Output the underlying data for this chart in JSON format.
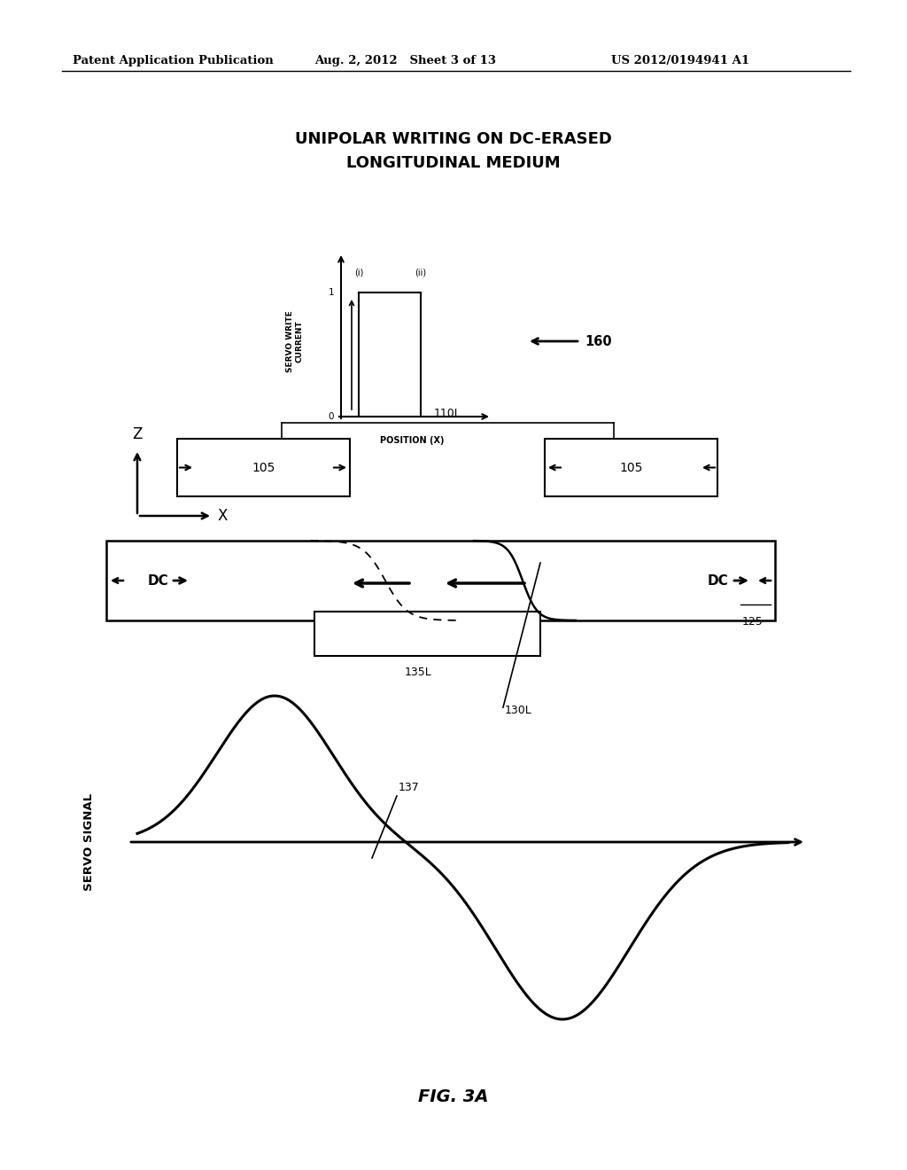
{
  "title_line1": "UNIPOLAR WRITING ON DC-ERASED",
  "title_line2": "LONGITUDINAL MEDIUM",
  "header_left": "Patent Application Publication",
  "header_mid": "Aug. 2, 2012   Sheet 3 of 13",
  "header_right": "US 2012/0194941 A1",
  "fig_label": "FIG. 3A",
  "bg_color": "#ffffff",
  "text_color": "#000000",
  "label_160": "160",
  "label_105": "105",
  "label_110L": "110L",
  "label_125": "125",
  "label_135L": "135L",
  "label_130L": "130L",
  "label_137": "137",
  "label_DC": "DC",
  "label_Z": "Z",
  "label_X": "X",
  "label_0": "0",
  "label_1": "1",
  "servo_write_current": "SERVO WRITE\nCURRENT",
  "position_x": "POSITION (X)",
  "servo_signal": "SERVO SIGNAL"
}
